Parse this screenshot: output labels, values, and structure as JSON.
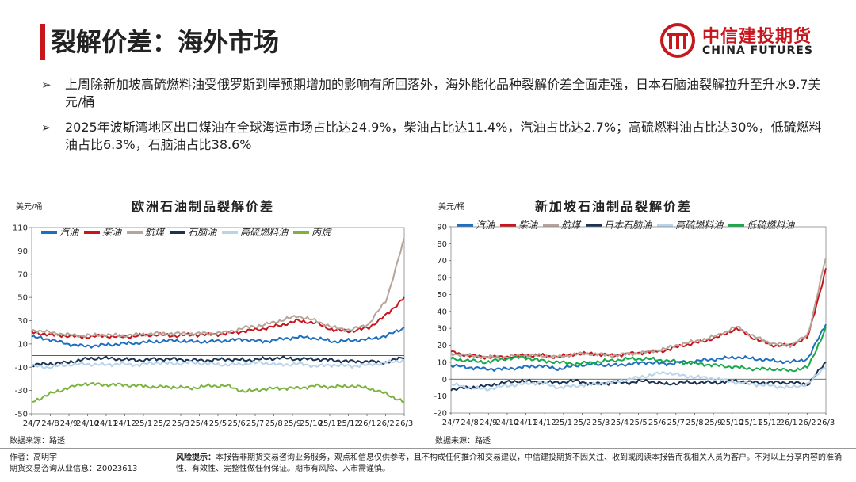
{
  "header": {
    "title": "裂解价差：海外市场",
    "logo_cn": "中信建投期货",
    "logo_en": "CHINA FUTURES"
  },
  "bullets": [
    "上周除新加坡高硫燃料油受俄罗斯到岸预期增加的影响有所回落外，海外能化品种裂解价差全面走强，日本石脑油裂解拉升至升水9.7美元/桶",
    "2025年波斯湾地区出口煤油在全球海运市场占比达24.9%，柴油占比达11.4%，汽油占比达2.7%；高硫燃料油占比达30%，低硫燃料油占比6.3%，石脑油占比38.6%"
  ],
  "footer": {
    "author": "作者：高明宇",
    "license": "期货交易咨询从业信息：Z0023613",
    "risk_label": "风险提示：",
    "risk_text": "本报告非期货交易咨询业务服务，观点和信息仅供参考，且不构成任何推介和交易建议，中信建投期货不因关注、收到或阅读本报告而视相关人员为客户。不对以上分享内容的准确性、有效性、完整性做任何保证。期市有风险、入市需谨慎。"
  },
  "colors": {
    "accent": "#c8161d",
    "gasoline": "#1f6fbf",
    "diesel": "#c8161d",
    "jet": "#b5a49a",
    "naphtha": "#1b3350",
    "hsfo": "#b8d3ea",
    "lsfo": "#19a84a",
    "propane": "#7bb33c"
  },
  "chart_data": [
    {
      "type": "line",
      "title": "欧洲石油制品裂解价差",
      "ylabel": "美元/桶",
      "source": "数据来源：路透",
      "ylim": [
        -50,
        110
      ],
      "yticks": [
        -50,
        -30,
        -10,
        10,
        30,
        50,
        70,
        90,
        110
      ],
      "x_tick_labels": [
        "24/7",
        "24/8",
        "24/9",
        "24/10",
        "24/11",
        "24/12",
        "25/1",
        "25/2",
        "25/3",
        "25/4",
        "25/5",
        "25/6",
        "25/7",
        "25/8",
        "25/9",
        "25/10",
        "25/11",
        "25/12",
        "26/1",
        "26/2",
        "26/3"
      ],
      "legend_position": "top",
      "series": [
        {
          "name": "汽油",
          "color": "#1f6fbf",
          "values": [
            16,
            14,
            10,
            8,
            9,
            10,
            11,
            12,
            13,
            12,
            12,
            13,
            14,
            12,
            14,
            16,
            15,
            12,
            13,
            14,
            17,
            24
          ]
        },
        {
          "name": "柴油",
          "color": "#c8161d",
          "values": [
            20,
            18,
            17,
            16,
            17,
            16,
            17,
            18,
            17,
            18,
            18,
            19,
            21,
            23,
            26,
            30,
            28,
            22,
            21,
            24,
            35,
            50
          ]
        },
        {
          "name": "航煤",
          "color": "#b5a49a",
          "values": [
            22,
            20,
            18,
            17,
            18,
            17,
            18,
            19,
            19,
            19,
            19,
            20,
            24,
            26,
            30,
            34,
            30,
            24,
            22,
            27,
            48,
            100
          ]
        },
        {
          "name": "石脑油",
          "color": "#1b3350",
          "values": [
            -8,
            -7,
            -6,
            -3,
            -2,
            -3,
            -4,
            -3,
            -3,
            -4,
            -4,
            -3,
            -4,
            -3,
            -2,
            -3,
            -3,
            -4,
            -5,
            -5,
            -6,
            -1
          ]
        },
        {
          "name": "高硫燃料油",
          "color": "#b8d3ea",
          "values": [
            -9,
            -10,
            -8,
            -7,
            -8,
            -7,
            -8,
            -6,
            -7,
            -6,
            -7,
            -8,
            -7,
            -6,
            -8,
            -7,
            -9,
            -8,
            -9,
            -8,
            -6,
            -4
          ]
        },
        {
          "name": "丙烷",
          "color": "#7bb33c",
          "values": [
            -40,
            -33,
            -28,
            -24,
            -25,
            -25,
            -26,
            -27,
            -27,
            -28,
            -26,
            -26,
            -31,
            -29,
            -28,
            -28,
            -26,
            -27,
            -26,
            -28,
            -33,
            -40
          ]
        }
      ]
    },
    {
      "type": "line",
      "title": "新加坡石油制品裂解价差",
      "ylabel": "美元/桶",
      "source": "数据来源：路透",
      "ylim": [
        -20,
        90
      ],
      "yticks": [
        -20,
        -10,
        0,
        10,
        20,
        30,
        40,
        50,
        60,
        70,
        80,
        90
      ],
      "x_tick_labels": [
        "24/7",
        "24/8",
        "24/9",
        "24/10",
        "24/11",
        "24/12",
        "25/1",
        "25/2",
        "25/3",
        "25/4",
        "25/5",
        "25/6",
        "25/7",
        "25/8",
        "25/9",
        "25/10",
        "25/11",
        "25/12",
        "26/1",
        "26/2",
        "26/3"
      ],
      "legend_position": "top",
      "series": [
        {
          "name": "汽油",
          "color": "#1f6fbf",
          "values": [
            8,
            7,
            6,
            6,
            7,
            8,
            6,
            8,
            9,
            8,
            9,
            10,
            9,
            10,
            11,
            12,
            13,
            12,
            11,
            10,
            12,
            33
          ]
        },
        {
          "name": "柴油",
          "color": "#c8161d",
          "values": [
            16,
            14,
            13,
            13,
            14,
            14,
            13,
            15,
            15,
            14,
            15,
            16,
            17,
            20,
            22,
            25,
            30,
            24,
            20,
            20,
            25,
            65
          ]
        },
        {
          "name": "航煤",
          "color": "#b5a49a",
          "values": [
            15,
            14,
            13,
            13,
            14,
            14,
            13,
            15,
            15,
            14,
            15,
            16,
            18,
            21,
            23,
            26,
            31,
            25,
            21,
            20,
            26,
            72
          ]
        },
        {
          "name": "日本石脑油",
          "color": "#1b3350",
          "values": [
            -6,
            -5,
            -4,
            -2,
            -1,
            -2,
            -2,
            -1,
            -3,
            -2,
            -2,
            -1,
            -3,
            -2,
            -2,
            -2,
            -1,
            -2,
            -2,
            -2,
            -3,
            10
          ]
        },
        {
          "name": "高硫燃料油",
          "color": "#b8d3ea",
          "values": [
            -3,
            -5,
            -6,
            -4,
            -3,
            -2,
            -5,
            -4,
            -3,
            -2,
            0,
            2,
            4,
            2,
            1,
            0,
            -2,
            -3,
            -4,
            -5,
            -3,
            8
          ]
        },
        {
          "name": "低硫燃料油",
          "color": "#19a84a",
          "values": [
            12,
            11,
            10,
            12,
            13,
            11,
            10,
            9,
            10,
            11,
            12,
            12,
            11,
            10,
            9,
            8,
            7,
            6,
            6,
            5,
            7,
            30
          ]
        }
      ]
    }
  ]
}
